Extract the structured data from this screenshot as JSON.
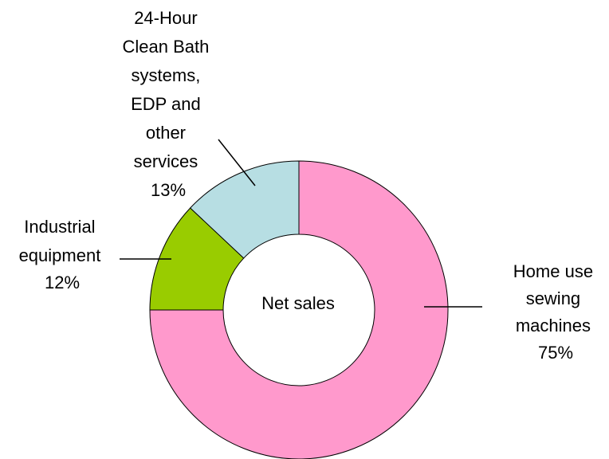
{
  "chart_data": {
    "type": "pie",
    "variant": "donut",
    "center_label": "Net sales",
    "slices": [
      {
        "name": "Home use sewing machines",
        "label_lines": [
          "Home use",
          "sewing",
          "machines"
        ],
        "percent_label": "75%",
        "value": 75,
        "color": "#ff99cc"
      },
      {
        "name": "Industrial equipment",
        "label_lines": [
          "Industrial",
          "equipment"
        ],
        "percent_label": "12%",
        "value": 12,
        "color": "#99cc00"
      },
      {
        "name": "24-Hour Clean Bath systems, EDP and other services",
        "label_lines": [
          "24-Hour",
          "Clean Bath",
          "systems,",
          "EDP and",
          "other",
          "services"
        ],
        "percent_label": "13%",
        "value": 13,
        "color": "#b7dee3"
      }
    ]
  }
}
